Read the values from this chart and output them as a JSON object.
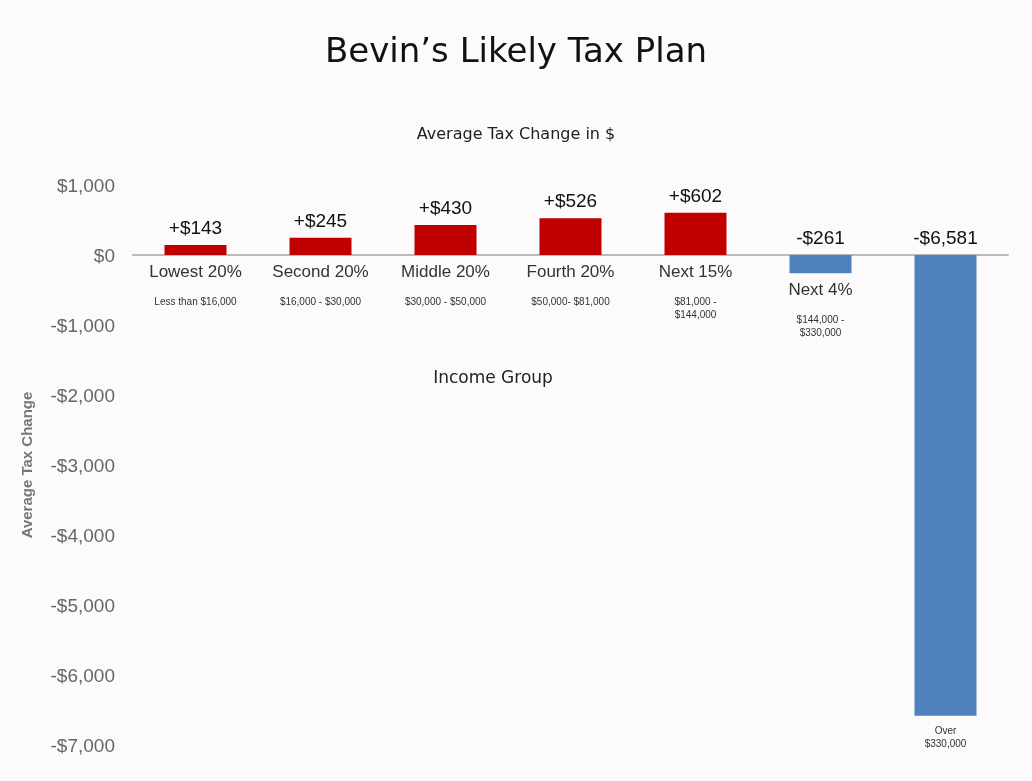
{
  "chart_data": {
    "type": "bar",
    "title": "Bevin’s Likely Tax Plan",
    "subtitle": "Average Tax Change in $",
    "xlabel": "Income Group",
    "ylabel": "Average Tax Change",
    "categories": [
      "Lowest 20%",
      "Second 20%",
      "Middle 20%",
      "Fourth 20%",
      "Next 15%",
      "Next 4%",
      null
    ],
    "values": [
      143,
      245,
      430,
      526,
      602,
      -261,
      -6581
    ],
    "colors": [
      "#c00000",
      "#c00000",
      "#c00000",
      "#c00000",
      "#c00000",
      "#4f81bd",
      "#4f81bd"
    ],
    "value_labels": [
      "+$143",
      "+$245",
      "+$430",
      "+$526",
      "+$602",
      "-$261",
      "-$6,581"
    ],
    "annotations": [
      "Less than $16,000",
      "$16,000 - $30,000",
      "$30,000 - $50,000",
      "$50,000- $81,000",
      "$81,000 -\n$144,000",
      "$144,000 -\n$330,000",
      "Over\n$330,000"
    ],
    "ylim": [
      -7000,
      1000
    ],
    "yticks": [
      {
        "value": 1000,
        "label": "$1,000"
      },
      {
        "value": 0,
        "label": "$0"
      },
      {
        "value": -1000,
        "label": "-$1,000"
      },
      {
        "value": -2000,
        "label": "-$2,000"
      },
      {
        "value": -3000,
        "label": "-$3,000"
      },
      {
        "value": -4000,
        "label": "-$4,000"
      },
      {
        "value": -5000,
        "label": "-$5,000"
      },
      {
        "value": -6000,
        "label": "-$6,000"
      },
      {
        "value": -7000,
        "label": "-$7,000"
      }
    ]
  }
}
